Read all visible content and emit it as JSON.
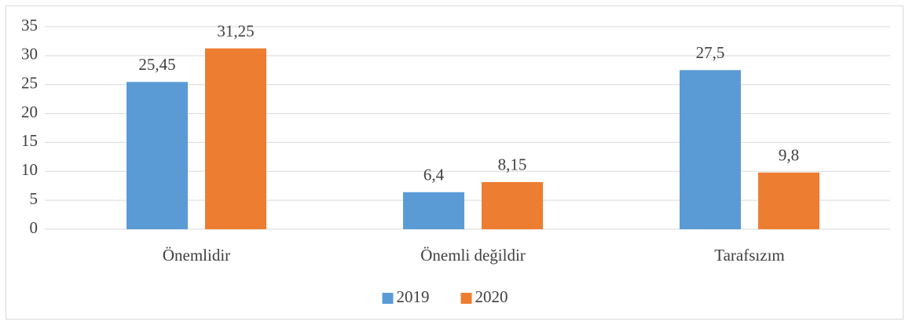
{
  "chart_data": {
    "type": "bar",
    "categories": [
      "Önemlidir",
      "Önemli değildir",
      "Tarafsızım"
    ],
    "series": [
      {
        "name": "2019",
        "color": "#5b9bd5",
        "values": [
          25.45,
          6.4,
          27.5
        ],
        "value_labels": [
          "25,45",
          "6,4",
          "27,5"
        ]
      },
      {
        "name": "2020",
        "color": "#ed7d31",
        "values": [
          31.25,
          8.15,
          9.8
        ],
        "value_labels": [
          "31,25",
          "8,15",
          "9,8"
        ]
      }
    ],
    "ylim": [
      0,
      35
    ],
    "yticks": [
      0,
      5,
      10,
      15,
      20,
      25,
      30,
      35
    ],
    "grid": true,
    "legend": "bottom"
  }
}
